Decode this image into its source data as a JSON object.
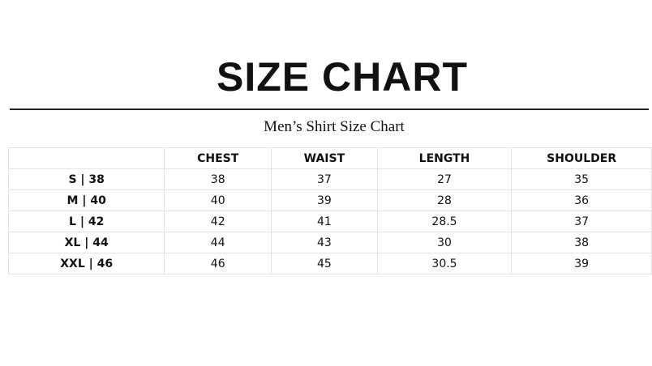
{
  "header": {
    "title": "SIZE CHART",
    "subtitle": "Men’s Shirt Size Chart"
  },
  "table": {
    "columns": [
      "",
      "CHEST",
      "WAIST",
      "LENGTH",
      "SHOULDER"
    ],
    "rows": [
      [
        "S | 38",
        "38",
        "37",
        "27",
        "35"
      ],
      [
        "M | 40",
        "40",
        "39",
        "28",
        "36"
      ],
      [
        "L | 42",
        "42",
        "41",
        "28.5",
        "37"
      ],
      [
        "XL | 44",
        "44",
        "43",
        "30",
        "38"
      ],
      [
        "XXL | 46",
        "46",
        "45",
        "30.5",
        "39"
      ]
    ]
  }
}
